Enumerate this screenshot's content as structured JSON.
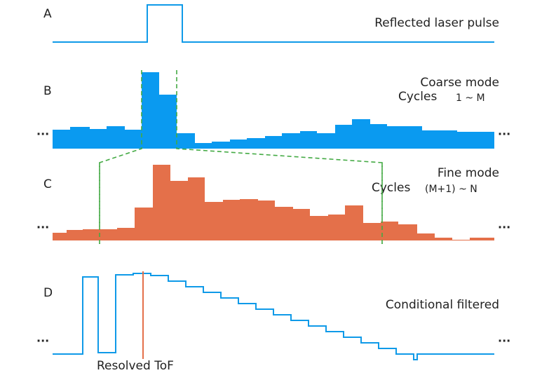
{
  "panels": [
    {
      "letter": "A",
      "caption": "Reflected laser pulse"
    },
    {
      "letter": "B",
      "caption": "Coarse mode",
      "cycles_label": "Cycles",
      "cycles_range": "1 ~ M",
      "left_dots": "...",
      "right_dots": "..."
    },
    {
      "letter": "C",
      "caption": "Fine mode",
      "cycles_label": "Cycles",
      "cycles_range": "(M+1) ~ N",
      "left_dots": "...",
      "right_dots": "..."
    },
    {
      "letter": "D",
      "caption": "Conditional filtered",
      "left_dots": "...",
      "right_dots": "..."
    }
  ],
  "tof_label": "Resolved ToF"
}
